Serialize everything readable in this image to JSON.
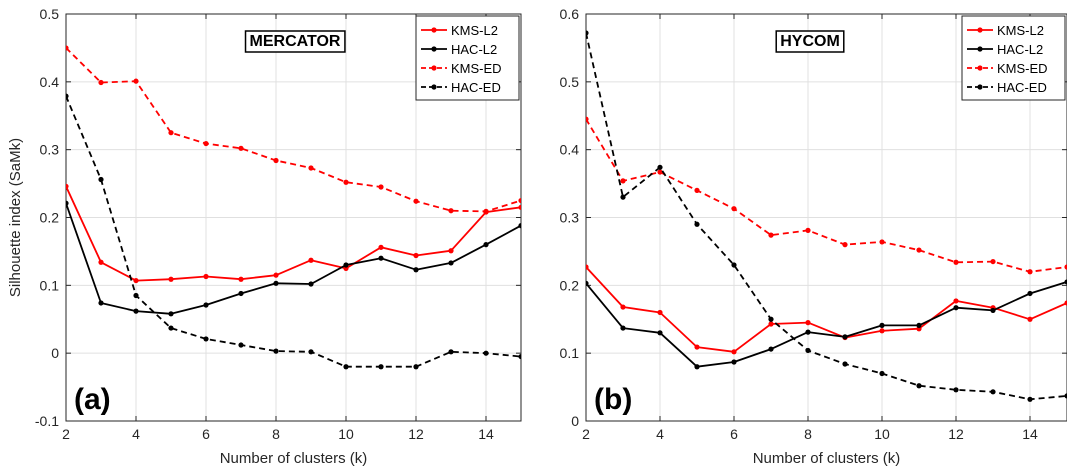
{
  "chart_data": [
    {
      "type": "line",
      "panel_label": "(a)",
      "title": "MERCATOR",
      "xlabel": "Number of clusters (k)",
      "ylabel": "Silhouette index (SaMk)",
      "xlim": [
        2,
        15
      ],
      "ylim": [
        -0.1,
        0.5
      ],
      "xticks": [
        "2",
        "4",
        "6",
        "8",
        "10",
        "12",
        "14"
      ],
      "yticks": [
        "-0.1",
        "0",
        "0.1",
        "0.2",
        "0.3",
        "0.4",
        "0.5"
      ],
      "grid": true,
      "legend": "top-right",
      "x": [
        2,
        3,
        4,
        5,
        6,
        7,
        8,
        9,
        10,
        11,
        12,
        13,
        14,
        15
      ],
      "series": [
        {
          "name": "KMS-L2",
          "color": "#ff0000",
          "dashed": false,
          "values": [
            0.246,
            0.134,
            0.107,
            0.109,
            0.113,
            0.109,
            0.115,
            0.137,
            0.125,
            0.156,
            0.144,
            0.151,
            0.208,
            0.215
          ]
        },
        {
          "name": "HAC-L2",
          "color": "#000000",
          "dashed": false,
          "values": [
            0.221,
            0.074,
            0.062,
            0.058,
            0.071,
            0.088,
            0.103,
            0.102,
            0.13,
            0.14,
            0.123,
            0.133,
            0.16,
            0.188
          ]
        },
        {
          "name": "KMS-ED",
          "color": "#ff0000",
          "dashed": true,
          "values": [
            0.45,
            0.399,
            0.401,
            0.325,
            0.309,
            0.302,
            0.284,
            0.273,
            0.252,
            0.245,
            0.224,
            0.21,
            0.209,
            0.225
          ]
        },
        {
          "name": "HAC-ED",
          "color": "#000000",
          "dashed": true,
          "values": [
            0.379,
            0.256,
            0.085,
            0.037,
            0.021,
            0.012,
            0.003,
            0.002,
            -0.02,
            -0.02,
            -0.02,
            0.002,
            0.0,
            -0.005
          ]
        }
      ]
    },
    {
      "type": "line",
      "panel_label": "(b)",
      "title": "HYCOM",
      "xlabel": "Number of clusters (k)",
      "ylabel": "",
      "xlim": [
        2,
        15
      ],
      "ylim": [
        0,
        0.6
      ],
      "xticks": [
        "2",
        "4",
        "6",
        "8",
        "10",
        "12",
        "14"
      ],
      "yticks": [
        "0",
        "0.1",
        "0.2",
        "0.3",
        "0.4",
        "0.5",
        "0.6"
      ],
      "grid": true,
      "legend": "top-right",
      "x": [
        2,
        3,
        4,
        5,
        6,
        7,
        8,
        9,
        10,
        11,
        12,
        13,
        14,
        15
      ],
      "series": [
        {
          "name": "KMS-L2",
          "color": "#ff0000",
          "dashed": false,
          "values": [
            0.227,
            0.168,
            0.16,
            0.109,
            0.102,
            0.143,
            0.145,
            0.123,
            0.133,
            0.136,
            0.177,
            0.167,
            0.15,
            0.174
          ]
        },
        {
          "name": "HAC-L2",
          "color": "#000000",
          "dashed": false,
          "values": [
            0.203,
            0.137,
            0.13,
            0.08,
            0.087,
            0.106,
            0.131,
            0.124,
            0.141,
            0.141,
            0.167,
            0.163,
            0.188,
            0.205
          ]
        },
        {
          "name": "KMS-ED",
          "color": "#ff0000",
          "dashed": true,
          "values": [
            0.445,
            0.354,
            0.367,
            0.34,
            0.313,
            0.274,
            0.281,
            0.26,
            0.264,
            0.252,
            0.234,
            0.235,
            0.22,
            0.227
          ]
        },
        {
          "name": "HAC-ED",
          "color": "#000000",
          "dashed": true,
          "values": [
            0.572,
            0.33,
            0.374,
            0.29,
            0.23,
            0.15,
            0.104,
            0.084,
            0.07,
            0.052,
            0.046,
            0.043,
            0.032,
            0.037
          ]
        }
      ]
    }
  ]
}
